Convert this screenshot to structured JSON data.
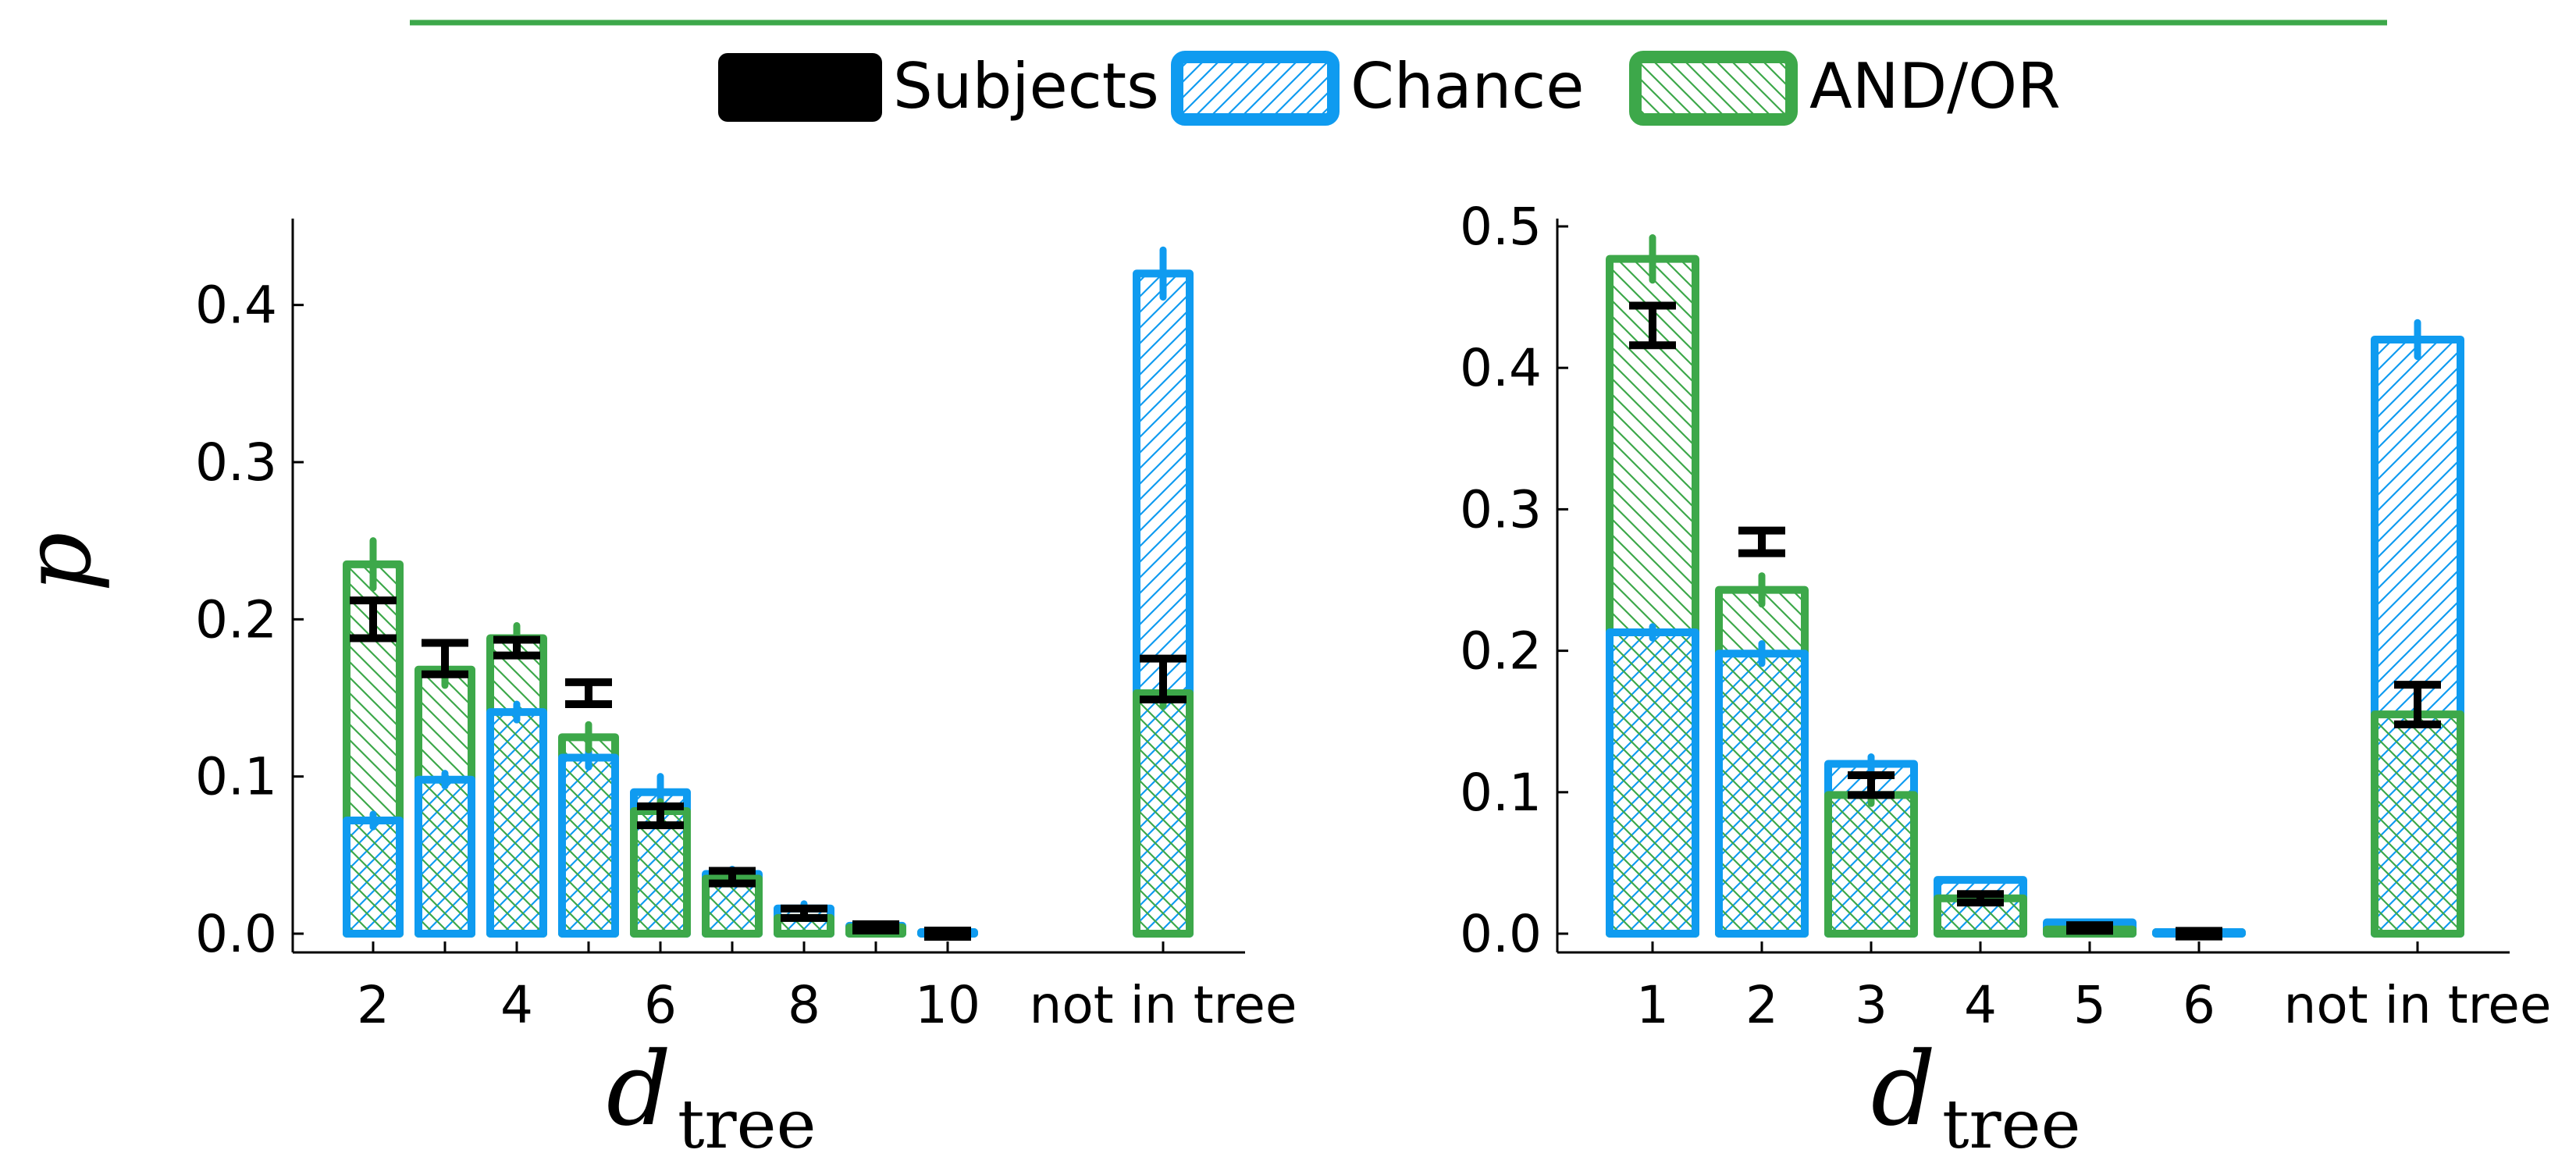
{
  "colors": {
    "subjects": "#000000",
    "chance": "#0f9bf0",
    "andor": "#3da84a"
  },
  "legend": {
    "entries": [
      {
        "key": "subjects",
        "label": "Subjects"
      },
      {
        "key": "chance",
        "label": "Chance"
      },
      {
        "key": "andor",
        "label": "AND/OR"
      }
    ]
  },
  "chart_data": [
    {
      "type": "bar",
      "ylabel": "p",
      "xlabel": {
        "main": "d",
        "sub": "tree"
      },
      "ylim": [
        0,
        0.45
      ],
      "yticks": [
        0.0,
        0.1,
        0.2,
        0.3,
        0.4
      ],
      "ytick_labels": [
        "0.0",
        "0.1",
        "0.2",
        "0.3",
        "0.4"
      ],
      "categories": [
        "2",
        "3",
        "4",
        "5",
        "6",
        "7",
        "8",
        "9",
        "10",
        "not in tree"
      ],
      "xtick_labels": [
        "2",
        "",
        "4",
        "",
        "6",
        "",
        "8",
        "",
        "10",
        "not in tree"
      ],
      "series": [
        {
          "name": "Chance",
          "values": [
            0.072,
            0.098,
            0.141,
            0.112,
            0.09,
            0.038,
            0.016,
            0.005,
            0.001,
            0.42
          ],
          "err": [
            0.004,
            0.004,
            0.005,
            0.006,
            0.01,
            0.003,
            0.003,
            0.002,
            0.001,
            0.015
          ]
        },
        {
          "name": "AND/OR",
          "values": [
            0.235,
            0.168,
            0.188,
            0.125,
            0.078,
            0.035,
            0.01,
            0.004,
            0.001,
            0.153
          ],
          "err": [
            0.015,
            0.01,
            0.008,
            0.008,
            0.006,
            0.003,
            0.002,
            0.001,
            0.001,
            0.008
          ]
        },
        {
          "name": "Subjects",
          "values": [
            0.2,
            0.175,
            0.182,
            0.153,
            0.075,
            0.036,
            0.013,
            0.004,
            0.0,
            0.162
          ],
          "err": [
            0.012,
            0.01,
            0.005,
            0.007,
            0.006,
            0.004,
            0.003,
            0.001,
            0.001,
            0.013
          ]
        }
      ]
    },
    {
      "type": "bar",
      "ylabel": "",
      "xlabel": {
        "main": "d",
        "sub": "tree"
      },
      "ylim": [
        0,
        0.5
      ],
      "yticks": [
        0.0,
        0.1,
        0.2,
        0.3,
        0.4,
        0.5
      ],
      "ytick_labels": [
        "0.0",
        "0.1",
        "0.2",
        "0.3",
        "0.4",
        "0.5"
      ],
      "categories": [
        "1",
        "2",
        "3",
        "4",
        "5",
        "6",
        "not in tree"
      ],
      "xtick_labels": [
        "1",
        "2",
        "3",
        "4",
        "5",
        "6",
        "not in tree"
      ],
      "series": [
        {
          "name": "Chance",
          "values": [
            0.213,
            0.198,
            0.12,
            0.038,
            0.008,
            0.001,
            0.42
          ],
          "err": [
            0.004,
            0.007,
            0.005,
            0.003,
            0.002,
            0.001,
            0.012
          ]
        },
        {
          "name": "AND/OR",
          "values": [
            0.477,
            0.243,
            0.098,
            0.025,
            0.003,
            0.001,
            0.155
          ],
          "err": [
            0.015,
            0.01,
            0.006,
            0.003,
            0.001,
            0.001,
            0.007
          ]
        },
        {
          "name": "Subjects",
          "values": [
            0.43,
            0.277,
            0.105,
            0.025,
            0.004,
            0.0,
            0.162
          ],
          "err": [
            0.014,
            0.008,
            0.007,
            0.003,
            0.001,
            0.001,
            0.014
          ]
        }
      ]
    }
  ]
}
